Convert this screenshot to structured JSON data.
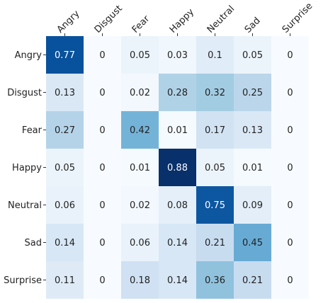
{
  "chart_data": {
    "type": "heatmap",
    "title": "",
    "xlabel": "",
    "ylabel": "",
    "x_categories": [
      "Angry",
      "Disgust",
      "Fear",
      "Happy",
      "Neutral",
      "Sad",
      "Surprise"
    ],
    "y_categories": [
      "Angry",
      "Disgust",
      "Fear",
      "Happy",
      "Neutral",
      "Sad",
      "Surprise"
    ],
    "values": [
      [
        0.77,
        0,
        0.05,
        0.03,
        0.1,
        0.05,
        0
      ],
      [
        0.13,
        0,
        0.02,
        0.28,
        0.32,
        0.25,
        0
      ],
      [
        0.27,
        0,
        0.42,
        0.01,
        0.17,
        0.13,
        0
      ],
      [
        0.05,
        0,
        0.01,
        0.88,
        0.05,
        0.01,
        0
      ],
      [
        0.06,
        0,
        0.02,
        0.08,
        0.75,
        0.09,
        0
      ],
      [
        0.14,
        0,
        0.06,
        0.14,
        0.21,
        0.45,
        0
      ],
      [
        0.11,
        0,
        0.18,
        0.14,
        0.36,
        0.21,
        0
      ]
    ],
    "value_range": [
      0,
      0.88
    ],
    "colormap": "Blues",
    "x_tick_position": "top",
    "x_tick_rotation": "45deg",
    "grid": false,
    "legend": "none"
  }
}
